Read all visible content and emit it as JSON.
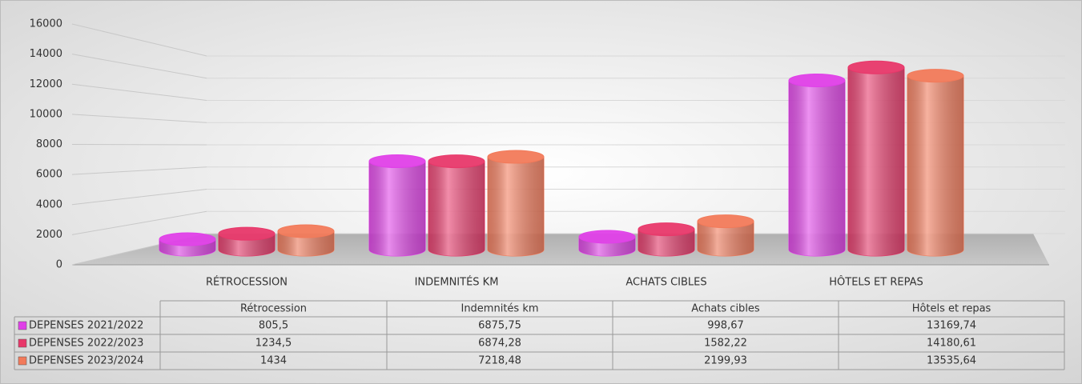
{
  "chart_data": {
    "type": "bar3d",
    "categories": [
      "RÉTROCESSION",
      "INDEMNITÉS KM",
      "ACHATS CIBLES",
      "HÔTELS ET REPAS"
    ],
    "table_headers": [
      "Rétrocession",
      "Indemnités km",
      "Achats cibles",
      "Hôtels et repas"
    ],
    "series": [
      {
        "name": "DEPENSES 2021/2022",
        "color": "#e040e8",
        "values": [
          805.5,
          6875.75,
          998.67,
          13169.74
        ],
        "value_labels": [
          "805,5",
          "6875,75",
          "998,67",
          "13169,74"
        ]
      },
      {
        "name": "DEPENSES 2022/2023",
        "color": "#e8386a",
        "values": [
          1234.5,
          6874.28,
          1582.22,
          14180.61
        ],
        "value_labels": [
          "1234,5",
          "6874,28",
          "1582,22",
          "14180,61"
        ]
      },
      {
        "name": "DEPENSES 2023/2024",
        "color": "#f27a5a",
        "values": [
          1434,
          7218.48,
          2199.93,
          13535.64
        ],
        "value_labels": [
          "1434",
          "7218,48",
          "2199,93",
          "13535,64"
        ]
      }
    ],
    "ylim": [
      0,
      16000
    ],
    "yticks": [
      0,
      2000,
      4000,
      6000,
      8000,
      10000,
      12000,
      14000,
      16000
    ],
    "grid": true
  }
}
